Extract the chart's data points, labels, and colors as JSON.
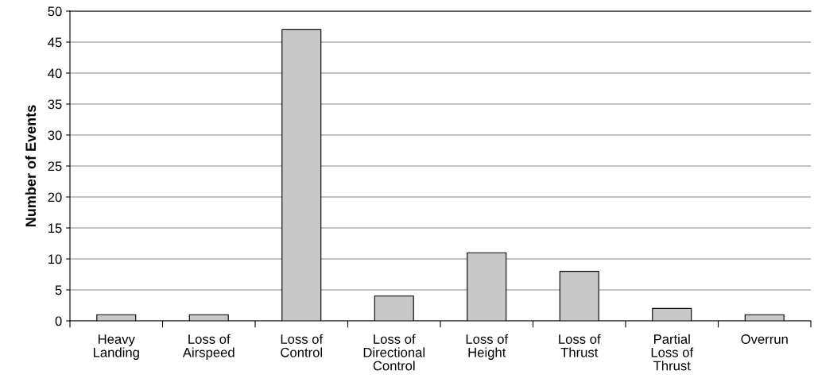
{
  "chart_data": {
    "type": "bar",
    "ylabel": "Number of Events",
    "categories": [
      "Heavy\nLanding",
      "Loss of\nAirspeed",
      "Loss of\nControl",
      "Loss of\nDirectional\nControl",
      "Loss of\nHeight",
      "Loss of\nThrust",
      "Partial\nLoss of\nThrust",
      "Overrun"
    ],
    "values": [
      1,
      1,
      47,
      4,
      11,
      8,
      2,
      1
    ],
    "color": "#c8c8c8",
    "ylim": [
      0,
      50
    ],
    "yticks": [
      0,
      5,
      10,
      15,
      20,
      25,
      30,
      35,
      40,
      45,
      50
    ],
    "grid": "y"
  }
}
